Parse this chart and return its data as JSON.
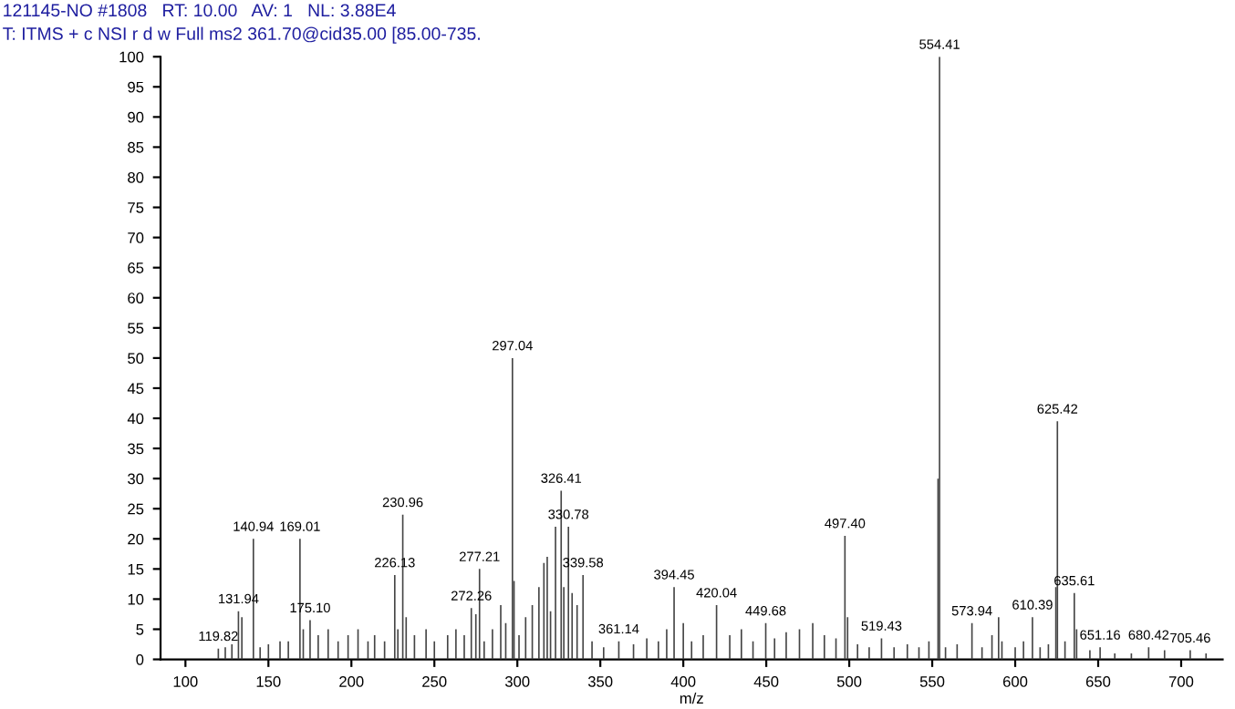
{
  "chart_data": {
    "type": "bar",
    "title": "121145-NO #1808   RT: 10.00   AV: 1   NL: 3.88E4",
    "subtitle": "T: ITMS + c NSI r d w Full ms2 361.70@cid35.00 [85.00-735.",
    "xlabel": "m/z",
    "x": [
      119.82,
      124,
      128,
      131.94,
      134,
      140.94,
      145,
      150,
      157,
      162,
      169.01,
      171,
      175.1,
      180,
      186,
      192,
      198,
      204,
      210,
      214,
      220,
      226.13,
      228,
      230.96,
      233,
      238,
      245,
      250,
      258,
      263,
      268,
      272.26,
      275,
      277.21,
      280,
      285,
      290,
      293,
      297.04,
      298,
      301,
      305,
      309,
      313,
      316,
      318,
      320,
      323,
      326.41,
      328,
      330.78,
      333,
      336,
      339.58,
      345,
      352,
      361.14,
      370,
      378,
      385,
      390,
      394.45,
      400,
      405,
      412,
      420.04,
      428,
      435,
      442,
      449.68,
      455,
      462,
      470,
      478,
      485,
      492,
      497.4,
      499,
      505,
      512,
      519.43,
      527,
      535,
      542,
      548,
      553.5,
      554.41,
      558,
      565,
      573.94,
      580,
      586,
      590,
      592,
      600,
      605,
      610.39,
      615,
      620,
      624.5,
      625.42,
      630,
      635.61,
      637,
      645,
      651.16,
      660,
      670,
      680.42,
      690,
      705.46,
      715
    ],
    "values": [
      1.8,
      2,
      2.5,
      8,
      7,
      20,
      2,
      2.5,
      3,
      3,
      20,
      5,
      6.5,
      4,
      5,
      3,
      4,
      5,
      3,
      4,
      3,
      14,
      5,
      24,
      7,
      4,
      5,
      3,
      4,
      5,
      4,
      8.5,
      7.5,
      15,
      3,
      5,
      9,
      6,
      50,
      13,
      4,
      7,
      9,
      12,
      16,
      17,
      8,
      22,
      28,
      12,
      22,
      11,
      9,
      14,
      3,
      2,
      3,
      2.5,
      3.5,
      3,
      5,
      12,
      6,
      3,
      4,
      9,
      4,
      5,
      3,
      6,
      3.5,
      4.5,
      5,
      6,
      4,
      3.5,
      20.5,
      7,
      2.5,
      2,
      3.5,
      2,
      2.5,
      2,
      3,
      30,
      100,
      2,
      2.5,
      6,
      2,
      4,
      7,
      3,
      2,
      3,
      7,
      2,
      2.5,
      12,
      39.5,
      3,
      11,
      5,
      1.5,
      2,
      1,
      1,
      2,
      1.5,
      1.5,
      1
    ],
    "color": "#444444",
    "annotations": [
      {
        "text": "119.82",
        "x": 119.82,
        "y": 1.8
      },
      {
        "text": "131.94",
        "x": 131.94,
        "y": 8
      },
      {
        "text": "140.94",
        "x": 140.94,
        "y": 20
      },
      {
        "text": "169.01",
        "x": 169.01,
        "y": 20
      },
      {
        "text": "175.10",
        "x": 175.1,
        "y": 6.5
      },
      {
        "text": "226.13",
        "x": 226.13,
        "y": 14
      },
      {
        "text": "230.96",
        "x": 230.96,
        "y": 24
      },
      {
        "text": "272.26",
        "x": 272.26,
        "y": 8.5
      },
      {
        "text": "277.21",
        "x": 277.21,
        "y": 15
      },
      {
        "text": "297.04",
        "x": 297.04,
        "y": 50
      },
      {
        "text": "326.41",
        "x": 326.41,
        "y": 28
      },
      {
        "text": "330.78",
        "x": 330.78,
        "y": 22
      },
      {
        "text": "339.58",
        "x": 339.58,
        "y": 14
      },
      {
        "text": "361.14",
        "x": 361.14,
        "y": 3
      },
      {
        "text": "394.45",
        "x": 394.45,
        "y": 12
      },
      {
        "text": "420.04",
        "x": 420.04,
        "y": 9
      },
      {
        "text": "449.68",
        "x": 449.68,
        "y": 6
      },
      {
        "text": "497.40",
        "x": 497.4,
        "y": 20.5
      },
      {
        "text": "519.43",
        "x": 519.43,
        "y": 3.5
      },
      {
        "text": "554.41",
        "x": 554.41,
        "y": 100
      },
      {
        "text": "573.94",
        "x": 573.94,
        "y": 6
      },
      {
        "text": "610.39",
        "x": 610.39,
        "y": 7
      },
      {
        "text": "625.42",
        "x": 625.42,
        "y": 39.5
      },
      {
        "text": "635.61",
        "x": 635.61,
        "y": 11
      },
      {
        "text": "651.16",
        "x": 651.16,
        "y": 2
      },
      {
        "text": "680.42",
        "x": 680.42,
        "y": 2
      },
      {
        "text": "705.46",
        "x": 705.46,
        "y": 1.5
      }
    ],
    "xlim": [
      85,
      725
    ],
    "ylim": [
      0,
      100
    ],
    "xticks": [
      100,
      150,
      200,
      250,
      300,
      350,
      400,
      450,
      500,
      550,
      600,
      650,
      700
    ],
    "yticks": [
      0,
      5,
      10,
      15,
      20,
      25,
      30,
      35,
      40,
      45,
      50,
      55,
      60,
      65,
      70,
      75,
      80,
      85,
      90,
      95,
      100
    ],
    "grid": false
  }
}
